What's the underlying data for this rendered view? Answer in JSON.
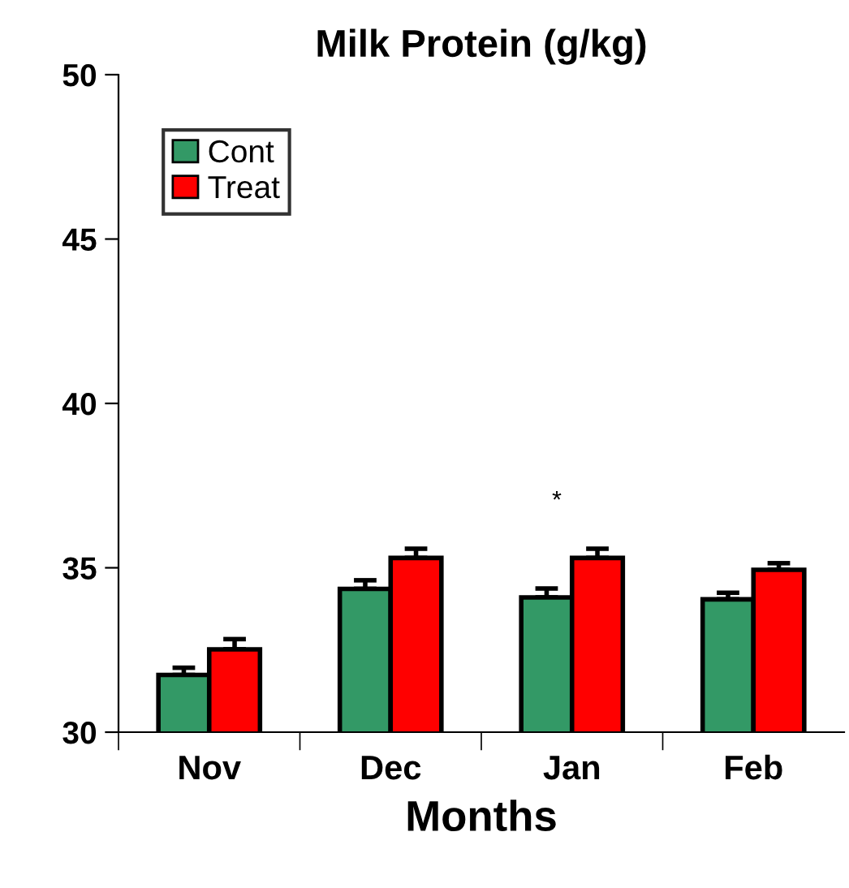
{
  "chart_data": {
    "type": "bar",
    "title": "Milk Protein (g/kg)",
    "xlabel": "Months",
    "categories": [
      "Nov",
      "Dec",
      "Jan",
      "Feb"
    ],
    "series": [
      {
        "name": "Cont",
        "color": "#339966",
        "values": [
          31.74,
          34.36,
          34.1,
          34.04
        ],
        "errors": [
          [
            31.74,
            31.96
          ],
          [
            34.36,
            34.62
          ],
          [
            34.1,
            34.37
          ],
          [
            34.04,
            34.24
          ]
        ]
      },
      {
        "name": "Treat",
        "color": "#ff0000",
        "values": [
          32.52,
          35.3,
          35.3,
          34.94
        ],
        "errors": [
          [
            32.52,
            32.83
          ],
          [
            35.3,
            35.58
          ],
          [
            35.3,
            35.58
          ],
          [
            34.94,
            35.14
          ]
        ]
      }
    ],
    "ylim": [
      30,
      50
    ],
    "yticks": [
      30,
      35,
      40,
      45,
      50
    ],
    "grid": false,
    "legend": "top left",
    "annotations": [
      "*"
    ]
  }
}
